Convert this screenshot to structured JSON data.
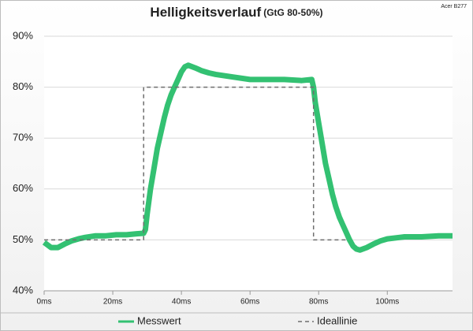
{
  "chart_data": {
    "type": "line",
    "title": "Helligkeitsverlauf",
    "subtitle": "(GtG 80-50%)",
    "annotation": "Acer B277",
    "xlim": [
      0,
      119
    ],
    "xticks": [
      {
        "value": 0,
        "label": "0ms"
      },
      {
        "value": 20,
        "label": "20ms"
      },
      {
        "value": 40,
        "label": "40ms"
      },
      {
        "value": 60,
        "label": "60ms"
      },
      {
        "value": 80,
        "label": "80ms"
      },
      {
        "value": 100,
        "label": "100ms"
      }
    ],
    "ylim": [
      40,
      90
    ],
    "yticks": [
      {
        "value": 40,
        "label": "40%"
      },
      {
        "value": 50,
        "label": "50%"
      },
      {
        "value": 60,
        "label": "60%"
      },
      {
        "value": 70,
        "label": "70%"
      },
      {
        "value": 80,
        "label": "80%"
      },
      {
        "value": 90,
        "label": "90%"
      }
    ],
    "grid": true,
    "legend": "bottom",
    "series": [
      {
        "name": "Messwert",
        "color": "#33c172",
        "style": "solid",
        "x": [
          0,
          2,
          4,
          6,
          8,
          10,
          12,
          15,
          18,
          21,
          24,
          27,
          29,
          29.5,
          30,
          31,
          32,
          33,
          34,
          35,
          36,
          37,
          38,
          39,
          40,
          41,
          42,
          44,
          46,
          48,
          50,
          55,
          60,
          65,
          70,
          75,
          78,
          78.5,
          79,
          80,
          81,
          82,
          83,
          84,
          85,
          86,
          87,
          88,
          89,
          90,
          91,
          92,
          94,
          96,
          98,
          100,
          105,
          110,
          115,
          119
        ],
        "values": [
          49.5,
          48.5,
          48.5,
          49.2,
          49.8,
          50.2,
          50.5,
          50.8,
          50.8,
          51,
          51,
          51.2,
          51.3,
          52,
          55,
          60,
          64,
          68,
          71,
          74,
          76.5,
          78.5,
          80,
          81.5,
          83,
          84,
          84.3,
          83.8,
          83.2,
          82.8,
          82.5,
          82,
          81.5,
          81.5,
          81.5,
          81.3,
          81.5,
          80,
          77,
          73,
          69,
          65,
          62,
          59,
          56.5,
          54.5,
          53,
          51.5,
          50,
          48.8,
          48.2,
          48,
          48.5,
          49.2,
          49.8,
          50.2,
          50.6,
          50.6,
          50.8,
          50.8
        ]
      },
      {
        "name": "Ideallinie",
        "color": "#6e6e6e",
        "style": "dashed",
        "x": [
          0,
          29,
          29,
          78.5,
          78.5,
          88
        ],
        "values": [
          50,
          50,
          80,
          80,
          50,
          50
        ]
      }
    ]
  }
}
